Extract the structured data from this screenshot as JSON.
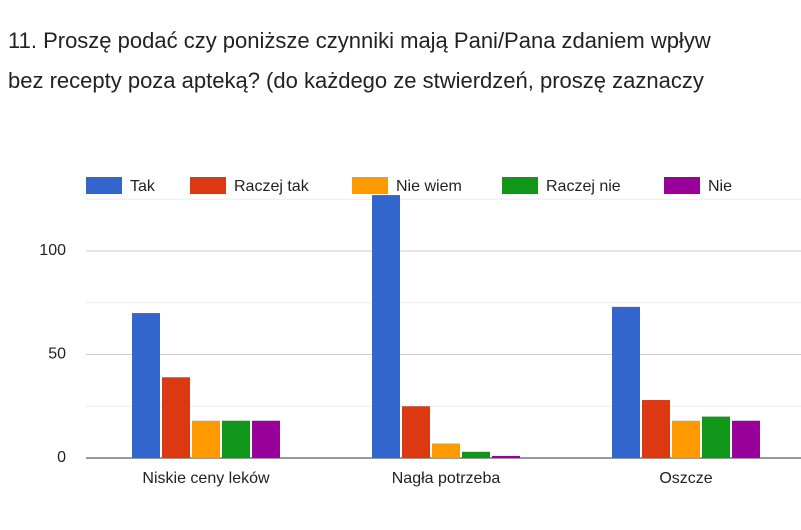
{
  "chart_data": {
    "type": "bar",
    "title_lines": [
      "11. Proszę podać czy poniższe czynniki mają Pani/Pana zdaniem wpływ",
      "bez recepty poza apteką? (do każdego ze stwierdzeń, proszę zaznaczy"
    ],
    "categories": [
      "Niskie ceny leków",
      "Nagła potrzeba",
      "Oszcze"
    ],
    "series": [
      {
        "name": "Tak",
        "color": "#3366cc",
        "values": [
          70,
          127,
          73
        ]
      },
      {
        "name": "Raczej tak",
        "color": "#dc3912",
        "values": [
          39,
          25,
          28
        ]
      },
      {
        "name": "Nie wiem",
        "color": "#ff9900",
        "values": [
          18,
          7,
          18
        ]
      },
      {
        "name": "Raczej nie",
        "color": "#109618",
        "values": [
          18,
          3,
          20
        ]
      },
      {
        "name": "Nie",
        "color": "#990099",
        "values": [
          18,
          1,
          18
        ]
      }
    ],
    "ylim": [
      0,
      128
    ],
    "yticks": [
      0,
      50,
      100
    ],
    "minor_yticks": [
      25,
      75,
      125
    ],
    "grid": true,
    "legend": "top"
  }
}
